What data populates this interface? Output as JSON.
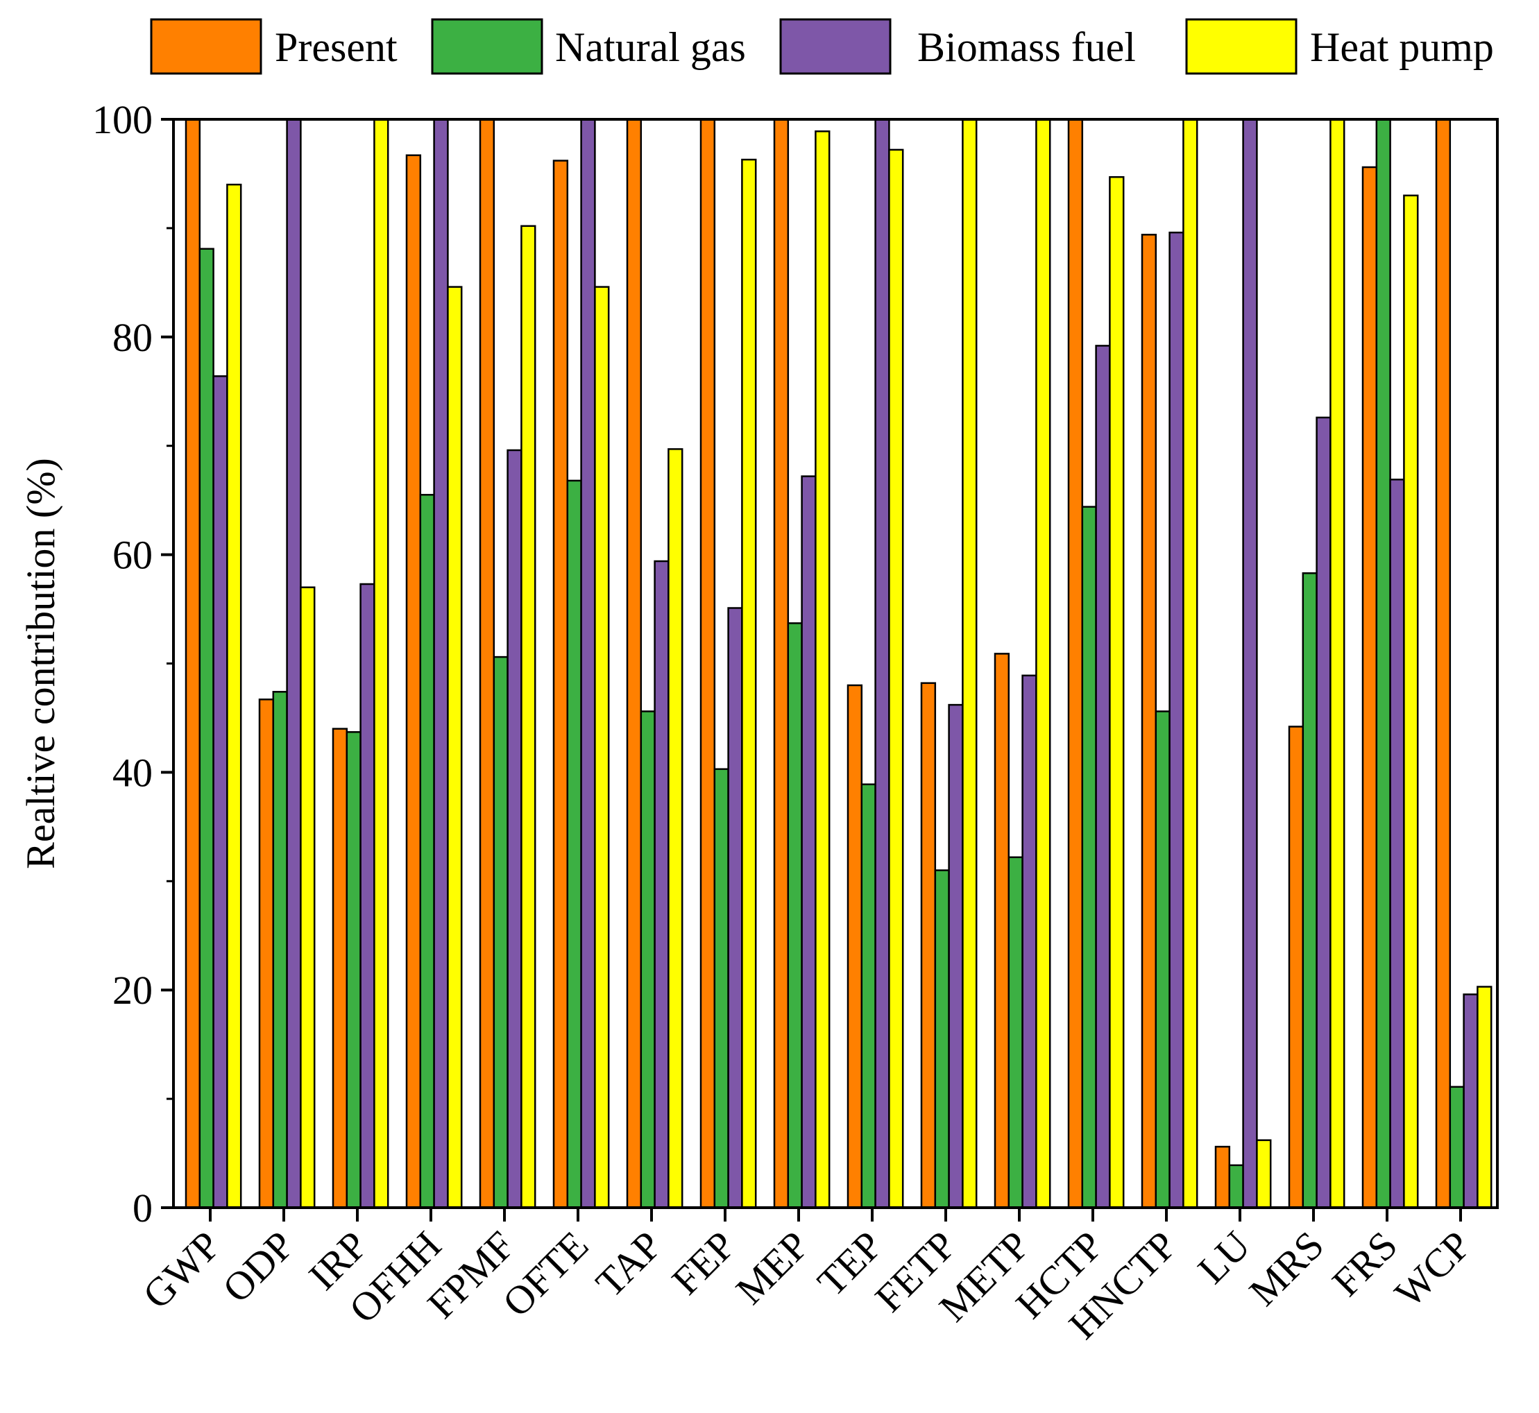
{
  "chart_data": {
    "type": "bar",
    "title": "",
    "xlabel": "",
    "ylabel": "Realtive contribution (%)",
    "ylim": [
      0,
      100
    ],
    "yticks": [
      0,
      20,
      40,
      60,
      80,
      100
    ],
    "grid": false,
    "legend_position": "top",
    "categories": [
      "GWP",
      "ODP",
      "IRP",
      "OFHH",
      "FPMF",
      "OFTE",
      "TAP",
      "FEP",
      "MEP",
      "TEP",
      "FETP",
      "METP",
      "HCTP",
      "HNCTP",
      "LU",
      "MRS",
      "FRS",
      "WCP"
    ],
    "series": [
      {
        "name": "Present",
        "color": "#FF8000",
        "values": [
          100,
          46.7,
          44,
          96.7,
          100,
          96.2,
          100,
          100,
          100,
          48,
          48.2,
          50.9,
          100,
          89.4,
          5.6,
          44.2,
          95.6,
          100
        ]
      },
      {
        "name": "Natural gas",
        "color": "#3CB043",
        "values": [
          88.1,
          47.4,
          43.7,
          65.5,
          50.6,
          66.8,
          45.6,
          40.3,
          53.7,
          38.9,
          31,
          32.2,
          64.4,
          45.6,
          3.9,
          58.3,
          100,
          11.1
        ]
      },
      {
        "name": "Biomass fuel",
        "color": "#7E57A8",
        "values": [
          76.4,
          100,
          57.3,
          100,
          69.6,
          100,
          59.4,
          55.1,
          67.2,
          100,
          46.2,
          48.9,
          79.2,
          89.6,
          100,
          72.6,
          66.9,
          19.6
        ]
      },
      {
        "name": "Heat pump",
        "color": "#FFFF00",
        "values": [
          94,
          57,
          100,
          84.6,
          90.2,
          84.6,
          69.7,
          96.3,
          98.9,
          97.2,
          100,
          100,
          94.7,
          100,
          6.2,
          100,
          93,
          20.3
        ]
      }
    ]
  }
}
